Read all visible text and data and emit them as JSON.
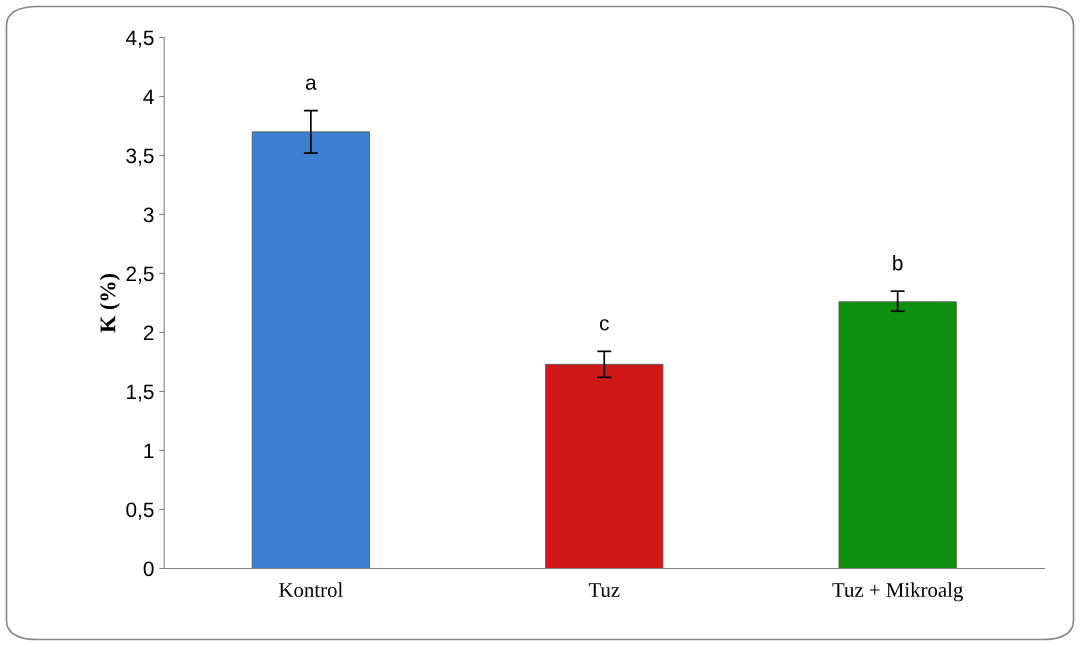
{
  "chart_data": {
    "type": "bar",
    "ylabel": "K (%)",
    "categories": [
      "Kontrol",
      "Tuz",
      "Tuz + Mikroalg"
    ],
    "values": [
      3.7,
      1.73,
      2.26
    ],
    "errors": [
      [
        3.52,
        3.88
      ],
      [
        1.62,
        1.84
      ],
      [
        2.18,
        2.35
      ]
    ],
    "colors": [
      "#3d7fd0",
      "#d01818",
      "#109010"
    ],
    "ylim": [
      0,
      4.5
    ],
    "yticks": [
      0,
      {
        "value": 0.5,
        "label": "0,5"
      },
      1,
      {
        "value": 1.5,
        "label": "1,5"
      },
      2,
      {
        "value": 2.5,
        "label": "2,5"
      },
      3,
      {
        "value": 3.5,
        "label": "3,5"
      },
      4,
      {
        "value": 4.5,
        "label": "4,5"
      }
    ],
    "grid": false,
    "legend": false,
    "annotations": [
      {
        "text": "a",
        "x": "Kontrol",
        "y": 3.88
      },
      {
        "text": "c",
        "x": "Tuz",
        "y": 1.84
      },
      {
        "text": "b",
        "x": "Tuz + Mikroalg",
        "y": 2.35
      }
    ]
  }
}
